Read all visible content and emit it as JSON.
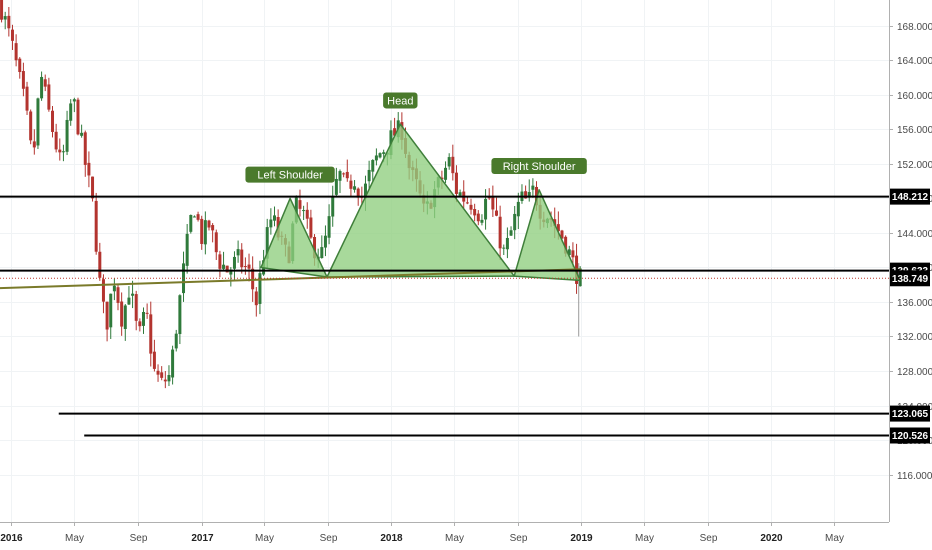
{
  "chart_data": {
    "type": "candlestick",
    "title": "",
    "xlabel": "",
    "ylabel": "",
    "ylim": [
      110.5,
      171.0
    ],
    "xlim": [
      "2015-12-10",
      "2020-08-15"
    ],
    "grid": true,
    "y_ticks": [
      "116.000",
      "120.000",
      "124.000",
      "128.000",
      "132.000",
      "136.000",
      "140.000",
      "144.000",
      "148.000",
      "152.000",
      "156.000",
      "160.000",
      "164.000",
      "168.000"
    ],
    "x_ticks": [
      {
        "label": "2016",
        "date": "2016-01-01",
        "bold": true
      },
      {
        "label": "May",
        "date": "2016-05-01",
        "bold": false
      },
      {
        "label": "Sep",
        "date": "2016-09-01",
        "bold": false
      },
      {
        "label": "2017",
        "date": "2017-01-01",
        "bold": true
      },
      {
        "label": "May",
        "date": "2017-05-01",
        "bold": false
      },
      {
        "label": "Sep",
        "date": "2017-09-01",
        "bold": false
      },
      {
        "label": "2018",
        "date": "2018-01-01",
        "bold": true
      },
      {
        "label": "May",
        "date": "2018-05-01",
        "bold": false
      },
      {
        "label": "Sep",
        "date": "2018-09-01",
        "bold": false
      },
      {
        "label": "2019",
        "date": "2019-01-01",
        "bold": true
      },
      {
        "label": "May",
        "date": "2019-05-01",
        "bold": false
      },
      {
        "label": "Sep",
        "date": "2019-09-01",
        "bold": false
      },
      {
        "label": "2020",
        "date": "2020-01-01",
        "bold": true
      },
      {
        "label": "May",
        "date": "2020-05-01",
        "bold": false
      }
    ],
    "price_path": [
      [
        "2015-12-10",
        171.5
      ],
      [
        "2016-01-05",
        166.0
      ],
      [
        "2016-02-01",
        158.5
      ],
      [
        "2016-02-15",
        152.0
      ],
      [
        "2016-03-01",
        162.5
      ],
      [
        "2016-03-20",
        157.0
      ],
      [
        "2016-04-10",
        151.5
      ],
      [
        "2016-05-01",
        160.0
      ],
      [
        "2016-05-20",
        154.0
      ],
      [
        "2016-06-10",
        147.0
      ],
      [
        "2016-06-24",
        137.5
      ],
      [
        "2016-07-05",
        133.0
      ],
      [
        "2016-07-20",
        139.0
      ],
      [
        "2016-08-05",
        134.0
      ],
      [
        "2016-08-20",
        138.0
      ],
      [
        "2016-09-05",
        131.5
      ],
      [
        "2016-09-20",
        135.0
      ],
      [
        "2016-10-05",
        128.0
      ],
      [
        "2016-10-20",
        126.5
      ],
      [
        "2016-11-05",
        127.5
      ],
      [
        "2016-11-20",
        134.5
      ],
      [
        "2016-12-05",
        141.5
      ],
      [
        "2016-12-20",
        147.5
      ],
      [
        "2017-01-05",
        143.5
      ],
      [
        "2017-01-20",
        145.0
      ],
      [
        "2017-02-05",
        141.0
      ],
      [
        "2017-02-25",
        139.5
      ],
      [
        "2017-03-15",
        141.0
      ],
      [
        "2017-04-05",
        139.5
      ],
      [
        "2017-04-20",
        136.0
      ],
      [
        "2017-05-05",
        142.0
      ],
      [
        "2017-05-20",
        146.0
      ],
      [
        "2017-06-05",
        143.0
      ],
      [
        "2017-06-20",
        141.0
      ],
      [
        "2017-07-05",
        147.0
      ],
      [
        "2017-07-20",
        146.0
      ],
      [
        "2017-08-05",
        142.5
      ],
      [
        "2017-08-25",
        141.5
      ],
      [
        "2017-09-10",
        146.0
      ],
      [
        "2017-09-25",
        151.0
      ],
      [
        "2017-10-10",
        149.0
      ],
      [
        "2017-10-25",
        150.5
      ],
      [
        "2017-11-10",
        148.0
      ],
      [
        "2017-11-25",
        151.0
      ],
      [
        "2017-12-10",
        153.0
      ],
      [
        "2017-12-25",
        154.0
      ],
      [
        "2018-01-10",
        155.5
      ],
      [
        "2018-01-25",
        156.0
      ],
      [
        "2018-02-10",
        151.0
      ],
      [
        "2018-02-25",
        149.0
      ],
      [
        "2018-03-10",
        146.0
      ],
      [
        "2018-03-25",
        148.5
      ],
      [
        "2018-04-10",
        150.0
      ],
      [
        "2018-04-25",
        152.5
      ],
      [
        "2018-05-10",
        149.0
      ],
      [
        "2018-05-25",
        148.0
      ],
      [
        "2018-06-10",
        147.5
      ],
      [
        "2018-06-25",
        146.0
      ],
      [
        "2018-07-10",
        148.5
      ],
      [
        "2018-07-25",
        145.0
      ],
      [
        "2018-08-10",
        141.5
      ],
      [
        "2018-08-25",
        144.5
      ],
      [
        "2018-09-10",
        148.0
      ],
      [
        "2018-09-25",
        147.5
      ],
      [
        "2018-10-05",
        149.0
      ],
      [
        "2018-10-20",
        146.5
      ],
      [
        "2018-11-05",
        146.0
      ],
      [
        "2018-11-20",
        144.5
      ],
      [
        "2018-12-05",
        143.0
      ],
      [
        "2018-12-20",
        140.5
      ],
      [
        "2018-12-31",
        138.7
      ]
    ],
    "annotations": [
      {
        "label": "Left Shoulder",
        "date": "2017-06-20",
        "price": 149.6
      },
      {
        "label": "Head",
        "date": "2018-01-18",
        "price": 158.2
      },
      {
        "label": "Right Shoulder",
        "date": "2018-10-12",
        "price": 150.6
      }
    ],
    "horizontal_levels": [
      {
        "value": 148.212,
        "label": "148.212"
      },
      {
        "value": 139.633,
        "label": "139.633"
      },
      {
        "value": 138.749,
        "label": "138.749",
        "current": true
      },
      {
        "value": 123.065,
        "label": "123.065"
      },
      {
        "value": 120.526,
        "label": "120.526"
      }
    ],
    "pattern_triangles": [
      {
        "name": "left-shoulder",
        "points": [
          [
            "2017-04-25",
            140.0
          ],
          [
            "2017-06-20",
            148.0
          ],
          [
            "2017-08-30",
            138.9
          ]
        ]
      },
      {
        "name": "head",
        "points": [
          [
            "2017-08-30",
            138.9
          ],
          [
            "2018-01-18",
            156.6
          ],
          [
            "2018-08-25",
            139.0
          ]
        ]
      },
      {
        "name": "right-shoulder",
        "points": [
          [
            "2018-08-25",
            139.0
          ],
          [
            "2018-10-12",
            149.0
          ],
          [
            "2018-12-30",
            138.5
          ]
        ]
      }
    ],
    "neckline": {
      "from": [
        "2015-12-10",
        137.6
      ],
      "to": [
        "2018-12-31",
        139.8
      ]
    },
    "colors": {
      "up": "#2f7a3b",
      "down": "#b3342f",
      "pattern_fill": "#8fce7f",
      "pattern_stroke": "#3f7f3a",
      "annotation_bg": "#4a7a2c",
      "level_line": "#000000",
      "neckline": "#7a7a2a",
      "current_dotted": "#c0392b"
    }
  }
}
